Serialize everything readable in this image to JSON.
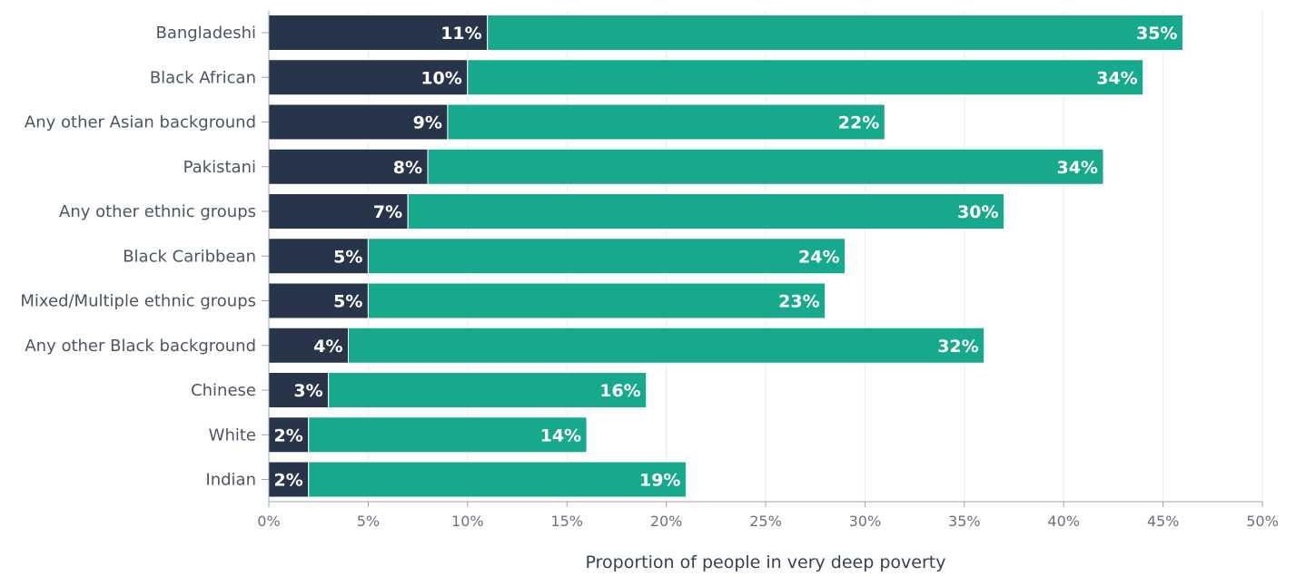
{
  "chart_data": {
    "type": "bar",
    "orientation": "horizontal",
    "stacked": true,
    "categories": [
      "Bangladeshi",
      "Black African",
      "Any other Asian background",
      "Pakistani",
      "Any other ethnic groups",
      "Black Caribbean",
      "Mixed/Multiple ethnic groups",
      "Any other Black background",
      "Chinese",
      "White",
      "Indian"
    ],
    "series": [
      {
        "color": "#283449",
        "values": [
          11,
          10,
          9,
          8,
          7,
          5,
          5,
          4,
          3,
          2,
          2
        ],
        "labels": [
          "11%",
          "10%",
          "9%",
          "8%",
          "7%",
          "5%",
          "5%",
          "4%",
          "3%",
          "2%",
          "2%"
        ]
      },
      {
        "color": "#17a98c",
        "values": [
          35,
          34,
          22,
          34,
          30,
          24,
          23,
          32,
          16,
          14,
          19
        ],
        "labels": [
          "35%",
          "34%",
          "22%",
          "34%",
          "30%",
          "24%",
          "23%",
          "32%",
          "16%",
          "14%",
          "19%"
        ]
      }
    ],
    "xlim": [
      0,
      50
    ],
    "xticks": [
      0,
      5,
      10,
      15,
      20,
      25,
      30,
      35,
      40,
      45,
      50
    ],
    "xtick_labels": [
      "0%",
      "5%",
      "10%",
      "15%",
      "20%",
      "25%",
      "30%",
      "35%",
      "40%",
      "45%",
      "50%"
    ],
    "xlabel": "Proportion of people in very deep poverty",
    "ylabel": "",
    "title": "",
    "grid": true,
    "legend": false
  }
}
